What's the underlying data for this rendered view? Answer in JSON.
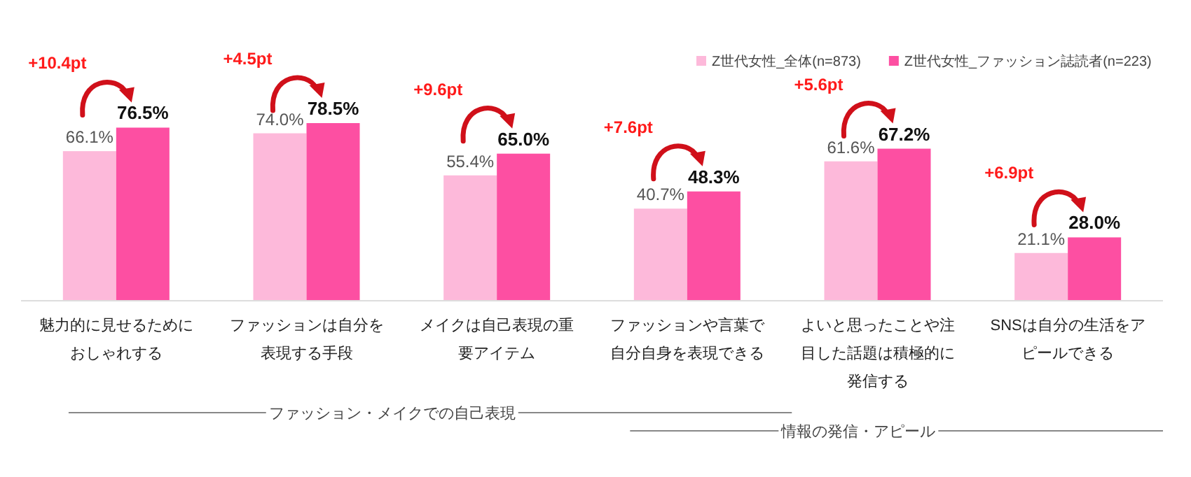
{
  "chart_data": {
    "type": "bar",
    "categories": [
      "魅力的に見せるためにおしゃれする",
      "ファッションは自分を表現する手段",
      "メイクは自己表現の重要アイテム",
      "ファッションや言葉で自分自身を表現できる",
      "よいと思ったことや注目した話題は積極的に発信する",
      "SNSは自分の生活をアピールできる"
    ],
    "series": [
      {
        "name": "Z世代女性_全体(n=873)",
        "color": "#fdb9da",
        "values": [
          66.1,
          74.0,
          55.4,
          40.7,
          61.6,
          21.1
        ],
        "value_labels": [
          "66.1%",
          "74.0%",
          "55.4%",
          "40.7%",
          "61.6%",
          "21.1%"
        ]
      },
      {
        "name": "Z世代女性_ファッション誌読者(n=223)",
        "color": "#fd4fa2",
        "values": [
          76.5,
          78.5,
          65.0,
          48.3,
          67.2,
          28.0
        ],
        "value_labels": [
          "76.5%",
          "78.5%",
          "65.0%",
          "48.3%",
          "67.2%",
          "28.0%"
        ]
      }
    ],
    "legend": "top right",
    "annotations": [
      "+10.4pt",
      "+4.5pt",
      "+9.6pt",
      "+7.6pt",
      "+5.6pt",
      "+6.9pt",
      "ファッション・メイクでの自己表現",
      "情報の発信・アピール"
    ]
  }
}
